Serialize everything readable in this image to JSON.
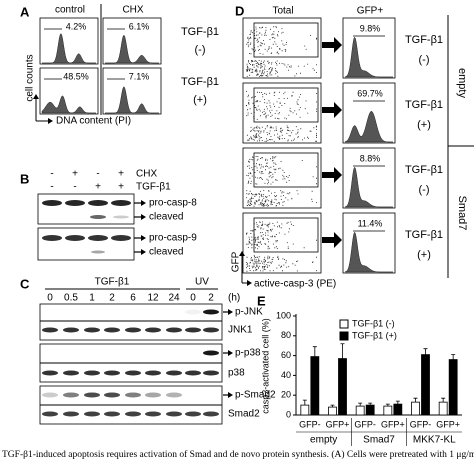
{
  "panel_a": {
    "label": "A",
    "columns": [
      "control",
      "CHX"
    ],
    "percentages": [
      "4.2%",
      "6.1%",
      "48.5%",
      "7.1%"
    ],
    "rows": [
      {
        "treatment": "TGF-β1",
        "sign": "(-)"
      },
      {
        "treatment": "TGF-β1",
        "sign": "(+)"
      }
    ],
    "y_axis_label": "cell counts",
    "x_axis_label": "DNA content (PI)"
  },
  "panel_b": {
    "label": "B",
    "conditions": [
      {
        "name": "CHX",
        "signs": [
          "-",
          "+",
          "-",
          "+"
        ]
      },
      {
        "name": "TGF-β1",
        "signs": [
          "-",
          "-",
          "+",
          "+"
        ]
      }
    ],
    "bands": [
      "pro-casp-8",
      "cleaved",
      "pro-casp-9",
      "cleaved"
    ]
  },
  "panel_c": {
    "label": "C",
    "treatments": [
      "TGF-β1",
      "UV"
    ],
    "times": [
      "0",
      "0.5",
      "1",
      "2",
      "6",
      "12",
      "24",
      "0",
      "2"
    ],
    "time_unit": "(h)",
    "bands": [
      "p-JNK",
      "JNK1",
      "p-p38",
      "p38",
      "p-Smad2",
      "Smad2"
    ]
  },
  "panel_d": {
    "label": "D",
    "columns": [
      "Total",
      "GFP+"
    ],
    "rows": [
      {
        "percentage": "9.8%",
        "treatment": "TGF-β1",
        "sign": "(-)"
      },
      {
        "percentage": "69.7%",
        "treatment": "TGF-β1",
        "sign": "(+)"
      },
      {
        "percentage": "8.8%",
        "treatment": "TGF-β1",
        "sign": "(-)"
      },
      {
        "percentage": "11.4%",
        "treatment": "TGF-β1",
        "sign": "(+)"
      }
    ],
    "groups": [
      "empty",
      "Smad7"
    ],
    "y_axis_label": "GFP",
    "x_axis_label": "active-casp-3 (PE)"
  },
  "chart_data": {
    "type": "bar",
    "label": "E",
    "y_label": "casp3-activated cell (%)",
    "categories": [
      "GFP-",
      "GFP+",
      "GFP-",
      "GFP+",
      "GFP-",
      "GFP+"
    ],
    "groups": [
      "empty",
      "Smad7",
      "MKK7-KL"
    ],
    "series": [
      {
        "name": "TGF-β1 (-)",
        "color": "#ffffff",
        "values": [
          10,
          8,
          9,
          9,
          13,
          13
        ],
        "errors": [
          5,
          2,
          3,
          2,
          4,
          4
        ]
      },
      {
        "name": "TGF-β1 (+)",
        "color": "#000000",
        "values": [
          59,
          57,
          10,
          11,
          61,
          56
        ],
        "errors": [
          10,
          15,
          2,
          3,
          6,
          5
        ]
      }
    ],
    "ylim": [
      0,
      100
    ],
    "yticks": [
      0,
      20,
      40,
      60,
      80,
      100
    ]
  },
  "caption": "TGF-β1-induced apoptosis requires activation of Smad and de novo protein synthesis. (A) Cells were pretreated with 1 μg/m"
}
